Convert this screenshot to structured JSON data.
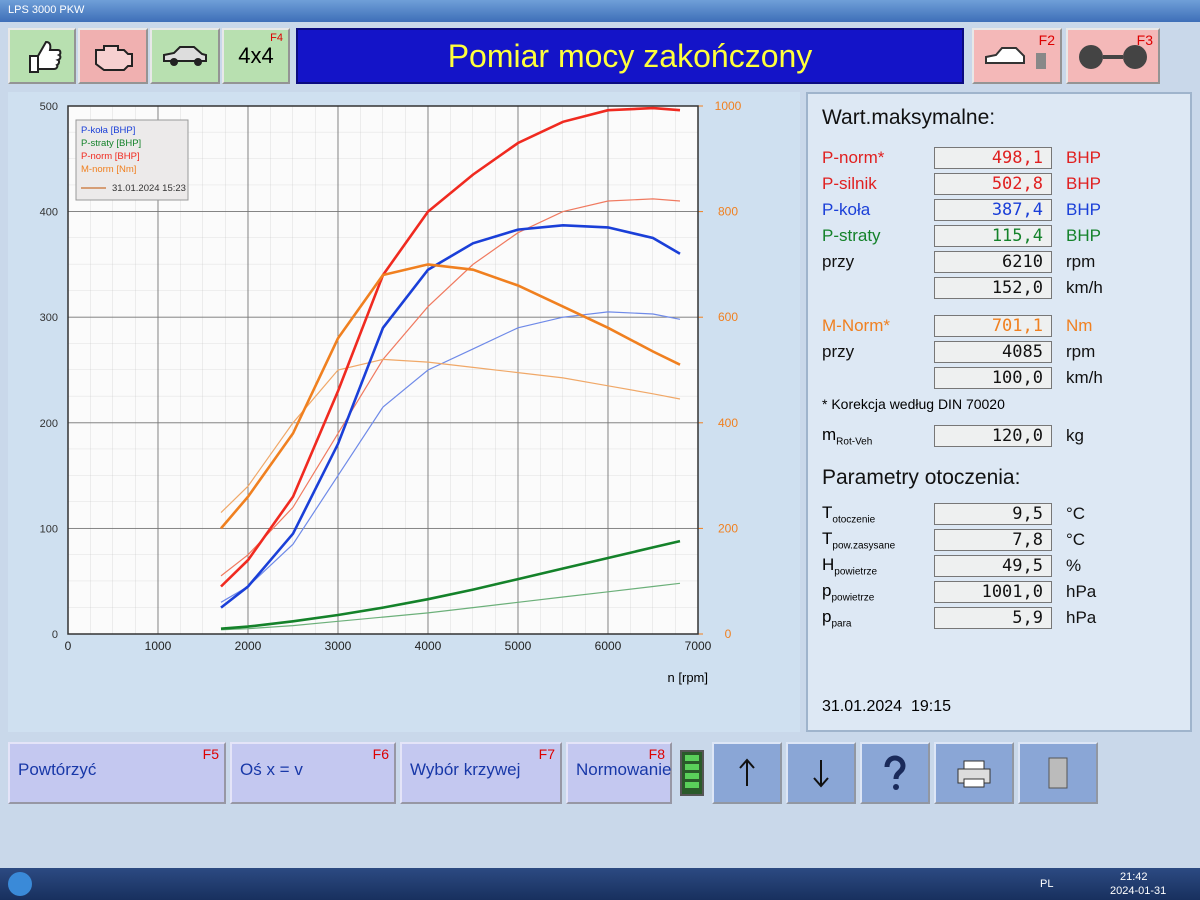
{
  "window": {
    "title": "LPS 3000 PKW"
  },
  "header": {
    "title": "Pomiar mocy zakończony",
    "f4": "F4",
    "drive": "4x4",
    "f2": "F2",
    "f3": "F3"
  },
  "chart_data": {
    "type": "line",
    "x": [
      1700,
      2000,
      2500,
      3000,
      3500,
      4000,
      4500,
      5000,
      5500,
      6000,
      6500,
      6800
    ],
    "xlim": [
      0,
      7000
    ],
    "xticks": [
      0,
      1000,
      2000,
      3000,
      4000,
      5000,
      6000,
      7000
    ],
    "xlabel": "n [rpm]",
    "ylim": [
      0,
      500
    ],
    "yticks": [
      0,
      100,
      200,
      300,
      400,
      500
    ],
    "y2lim": [
      0,
      1000
    ],
    "y2ticks": [
      0,
      200,
      400,
      600,
      800,
      1000
    ],
    "grid": true,
    "legend": "top-left",
    "series": [
      {
        "name": "P-koła [BHP]",
        "color": "#1a3fd8",
        "values": [
          25,
          45,
          95,
          180,
          290,
          345,
          370,
          383,
          387,
          385,
          375,
          360
        ]
      },
      {
        "name": "P-straty [BHP]",
        "color": "#14822a",
        "values": [
          5,
          7,
          12,
          18,
          25,
          33,
          42,
          52,
          62,
          72,
          82,
          88
        ]
      },
      {
        "name": "P-norm [BHP]",
        "color": "#f02a20",
        "values": [
          45,
          70,
          130,
          230,
          340,
          400,
          435,
          465,
          485,
          496,
          498,
          496
        ]
      },
      {
        "name": "M-norm [Nm]",
        "color": "#f08020",
        "axis": "y2",
        "values": [
          200,
          260,
          380,
          560,
          680,
          700,
          690,
          660,
          620,
          580,
          535,
          510
        ]
      }
    ],
    "comparison": {
      "name": "31.01.2024 15:23",
      "color": "#c87030",
      "series": [
        {
          "color": "#6f8ae8",
          "values": [
            30,
            45,
            85,
            150,
            215,
            250,
            270,
            290,
            300,
            305,
            303,
            298
          ]
        },
        {
          "color": "#6cb07a",
          "values": [
            4,
            5,
            8,
            12,
            16,
            20,
            25,
            30,
            35,
            40,
            45,
            48
          ]
        },
        {
          "color": "#f07a60",
          "values": [
            55,
            75,
            120,
            190,
            260,
            310,
            350,
            380,
            400,
            410,
            412,
            410
          ]
        },
        {
          "color": "#f0a868",
          "axis": "y2",
          "values": [
            230,
            280,
            400,
            500,
            520,
            515,
            505,
            495,
            485,
            470,
            455,
            445
          ]
        }
      ]
    }
  },
  "panel": {
    "max_title": "Wart.maksymalne:",
    "power_rows": [
      {
        "label": "P-norm*",
        "value": "498,1",
        "unit": "BHP",
        "color": "#e02020"
      },
      {
        "label": "P-silnik",
        "value": "502,8",
        "unit": "BHP",
        "color": "#e02020"
      },
      {
        "label": "P-koła",
        "value": "387,4",
        "unit": "BHP",
        "color": "#1a3fd8"
      },
      {
        "label": "P-straty",
        "value": "115,4",
        "unit": "BHP",
        "color": "#14822a"
      },
      {
        "label": "przy",
        "value": "6210",
        "unit": "rpm",
        "color": "#111111"
      },
      {
        "value": "152,0",
        "unit": "km/h",
        "color": "#111111"
      }
    ],
    "torque_rows": [
      {
        "label": "M-Norm*",
        "value": "701,1",
        "unit": "Nm",
        "color": "#f08020"
      },
      {
        "label": "przy",
        "value": "4085",
        "unit": "rpm",
        "color": "#111111"
      },
      {
        "value": "100,0",
        "unit": "km/h",
        "color": "#111111"
      }
    ],
    "note": "* Korekcja według DIN 70020",
    "mass": {
      "label": "m",
      "sub": "Rot-Veh",
      "value": "120,0",
      "unit": "kg"
    },
    "env_title": "Parametry otoczenia:",
    "env_rows": [
      {
        "label": "T",
        "sub": "otoczenie",
        "value": "9,5",
        "unit": "°C"
      },
      {
        "label": "T",
        "sub": "pow.zasysane",
        "value": "7,8",
        "unit": "°C"
      },
      {
        "label": "H",
        "sub": "powietrze",
        "value": "49,5",
        "unit": "%"
      },
      {
        "label": "p",
        "sub": "powietrze",
        "value": "1001,0",
        "unit": "hPa"
      },
      {
        "label": "p",
        "sub": "para",
        "value": "5,9",
        "unit": "hPa"
      }
    ],
    "date": "31.01.2024  19:15"
  },
  "buttons": [
    {
      "label": "Powtórzyć",
      "key": "F5"
    },
    {
      "label": "Oś x = v",
      "key": "F6"
    },
    {
      "label": "Wybór krzywej",
      "key": "F7"
    },
    {
      "label": "Normowanie",
      "key": "F8"
    }
  ],
  "taskbar": {
    "lang": "PL",
    "time": "21:42",
    "date": "2024-01-31"
  }
}
